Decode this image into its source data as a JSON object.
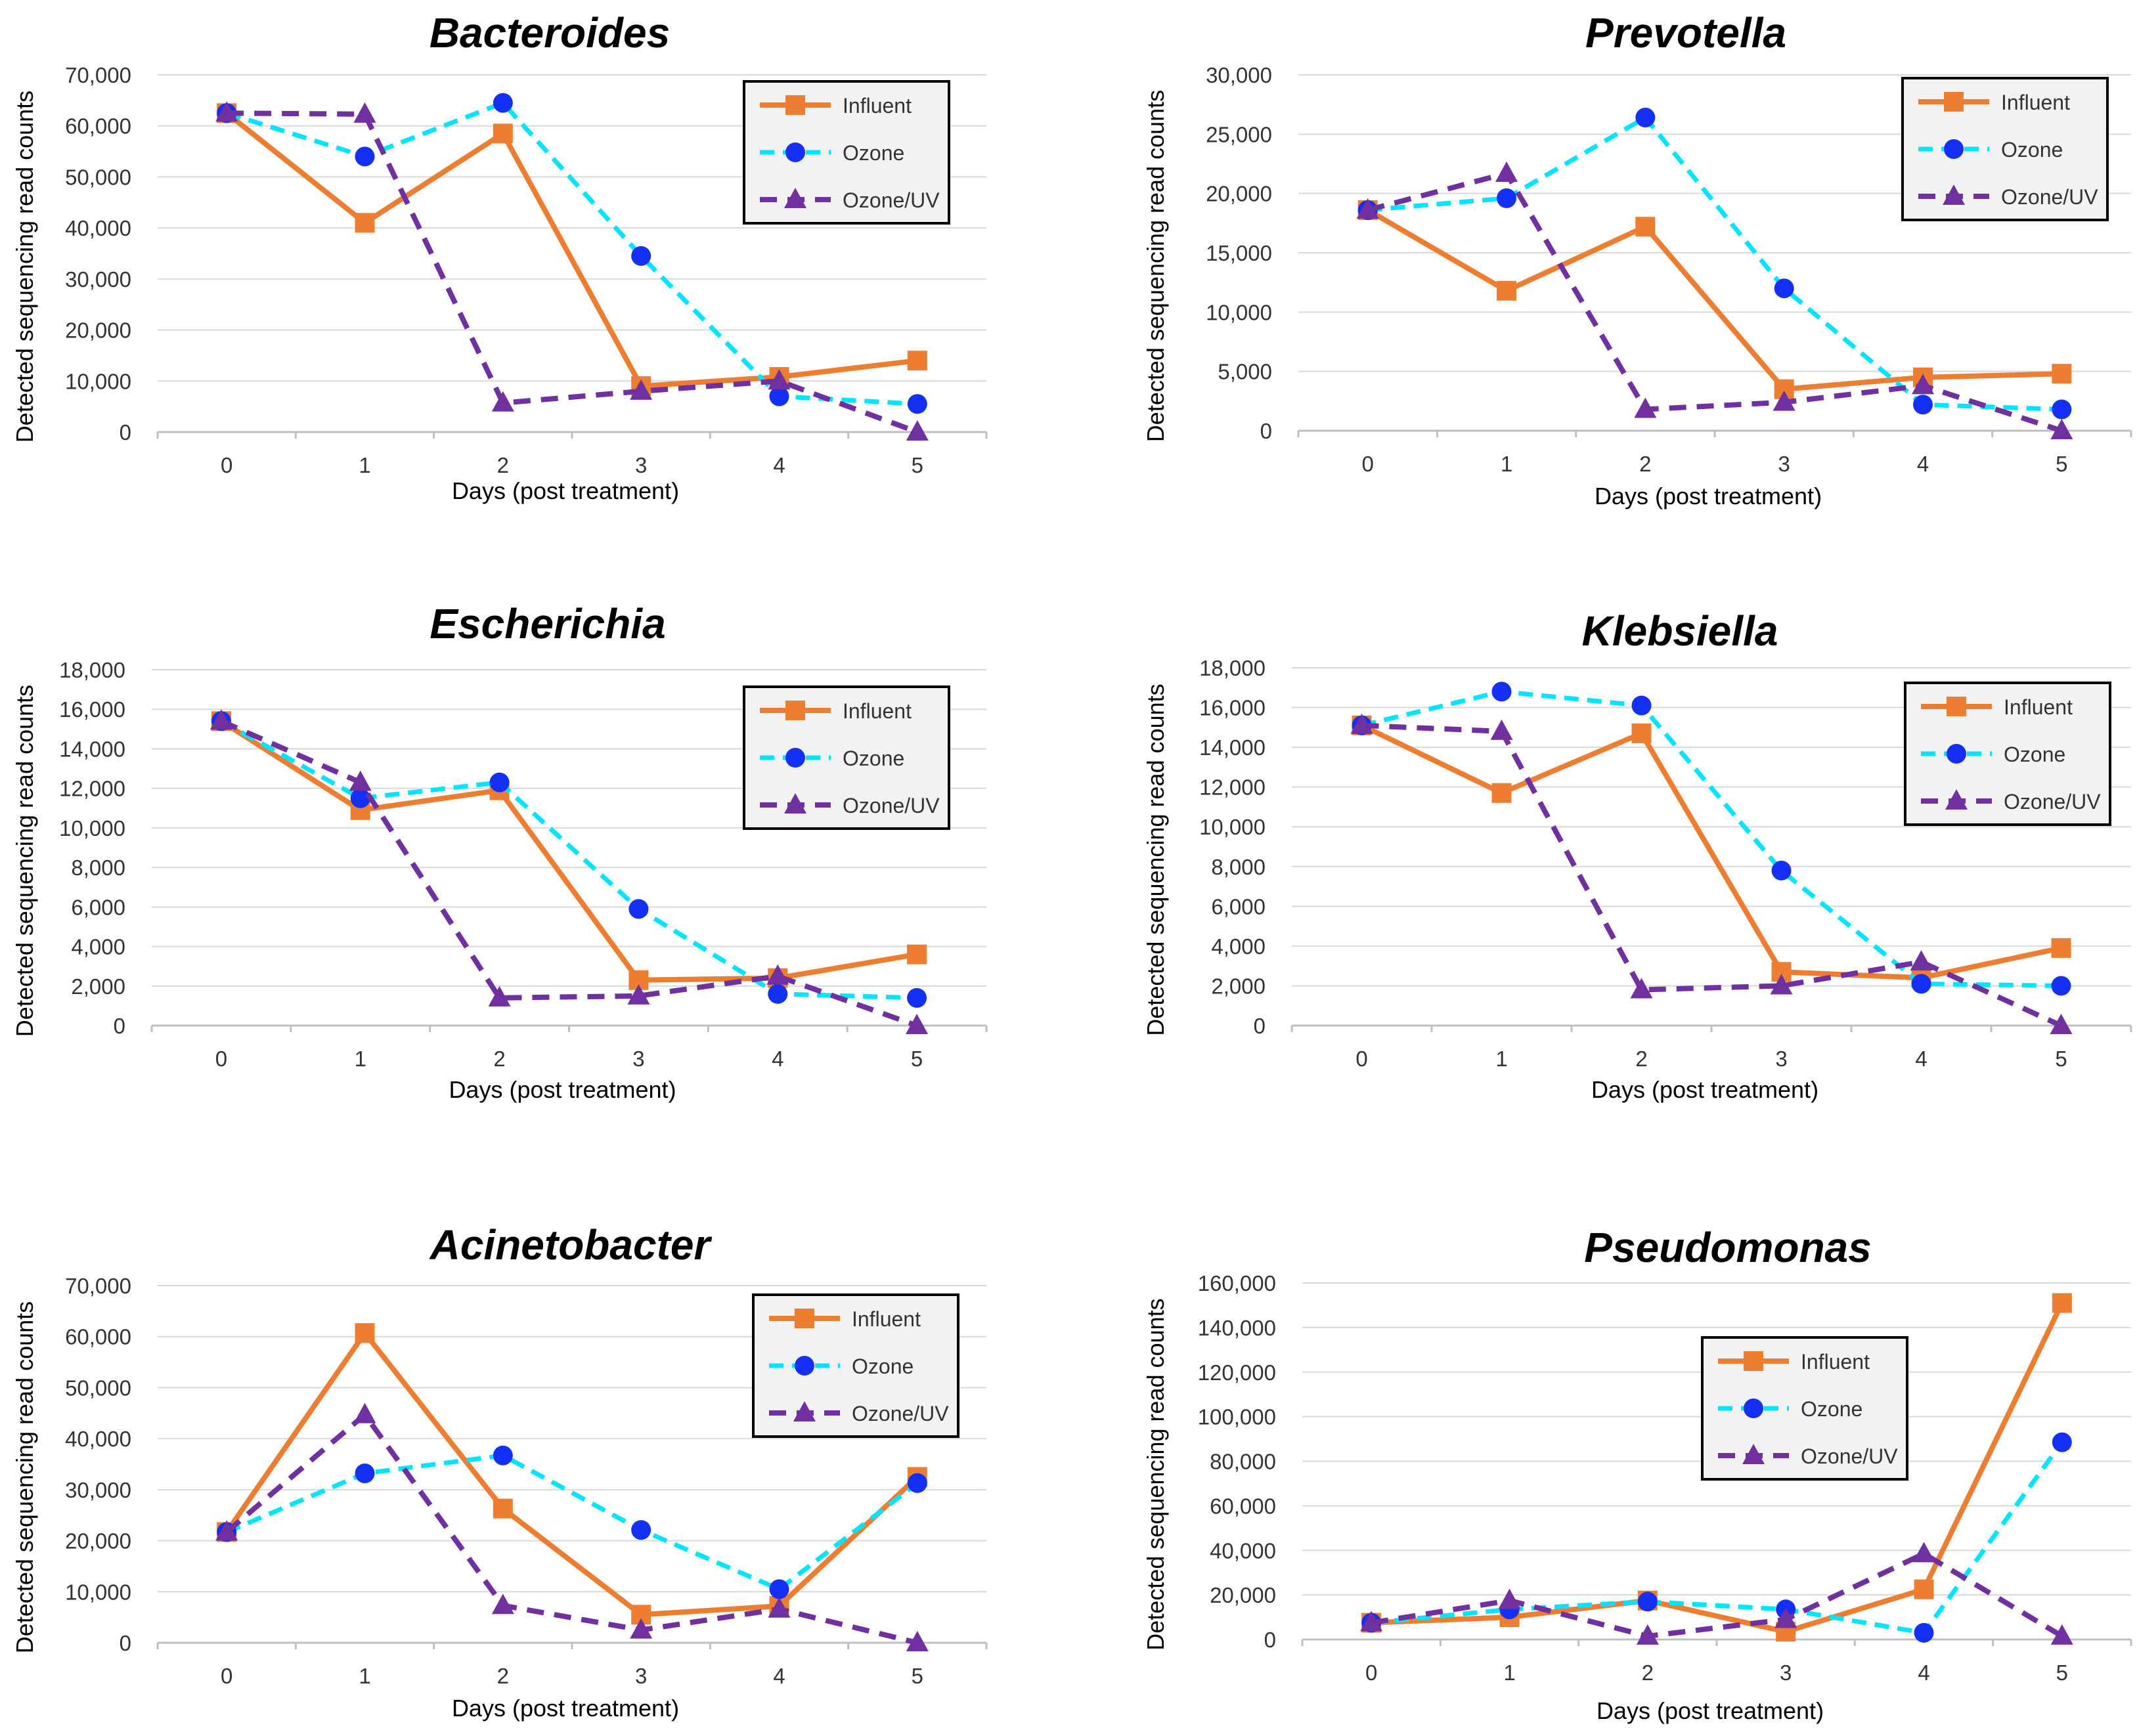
{
  "colors": {
    "Influent": "#ED7D31",
    "Ozone": "#00E5FF",
    "Ozone_marker": "#1530F5",
    "Ozone/UV": "#7030A0",
    "grid": "#D9D9D9",
    "legend_bg": "#F2F2F2"
  },
  "chart_data": [
    {
      "type": "line",
      "title": "Bacteroides",
      "xlabel": "Days (post treatment)",
      "ylabel": "Detected sequencing read counts",
      "x": [
        0,
        1,
        2,
        3,
        4,
        5
      ],
      "x_labels": [
        "0",
        "1",
        "2",
        "3",
        "4",
        "5"
      ],
      "ylim": [
        0,
        70000
      ],
      "y_ticks": [
        0,
        10000,
        20000,
        30000,
        40000,
        50000,
        60000,
        70000
      ],
      "y_tick_labels": [
        "0",
        "10,000",
        "20,000",
        "30,000",
        "40,000",
        "50,000",
        "60,000",
        "70,000"
      ],
      "legend_position": "top-right",
      "series": [
        {
          "name": "Influent",
          "values": [
            62500,
            41000,
            58500,
            9000,
            10800,
            14000
          ]
        },
        {
          "name": "Ozone",
          "values": [
            62500,
            54000,
            64500,
            34500,
            7000,
            5500
          ]
        },
        {
          "name": "Ozone/UV",
          "values": [
            62500,
            62300,
            5700,
            8000,
            10000,
            0
          ]
        }
      ]
    },
    {
      "type": "line",
      "title": "Prevotella",
      "xlabel": "Days (post treatment)",
      "ylabel": "Detected sequencing read counts",
      "x": [
        0,
        1,
        2,
        3,
        4,
        5
      ],
      "x_labels": [
        "0",
        "1",
        "2",
        "3",
        "4",
        "5"
      ],
      "ylim": [
        0,
        30000
      ],
      "y_ticks": [
        0,
        5000,
        10000,
        15000,
        20000,
        25000,
        30000
      ],
      "y_tick_labels": [
        "0",
        "5,000",
        "10,000",
        "15,000",
        "20,000",
        "25,000",
        "30,000"
      ],
      "legend_position": "top-right",
      "series": [
        {
          "name": "Influent",
          "values": [
            18600,
            11800,
            17200,
            3500,
            4500,
            4800
          ]
        },
        {
          "name": "Ozone",
          "values": [
            18600,
            19600,
            26400,
            12000,
            2200,
            1800
          ]
        },
        {
          "name": "Ozone/UV",
          "values": [
            18600,
            21700,
            1800,
            2400,
            3800,
            0
          ]
        }
      ]
    },
    {
      "type": "line",
      "title": "Escherichia",
      "xlabel": "Days (post treatment)",
      "ylabel": "Detected sequencing read counts",
      "x": [
        0,
        1,
        2,
        3,
        4,
        5
      ],
      "x_labels": [
        "0",
        "1",
        "2",
        "3",
        "4",
        "5"
      ],
      "ylim": [
        0,
        18000
      ],
      "y_ticks": [
        0,
        2000,
        4000,
        6000,
        8000,
        10000,
        12000,
        14000,
        16000,
        18000
      ],
      "y_tick_labels": [
        "0",
        "2,000",
        "4,000",
        "6,000",
        "8,000",
        "10,000",
        "12,000",
        "14,000",
        "16,000",
        "18,000"
      ],
      "legend_position": "top-right",
      "series": [
        {
          "name": "Influent",
          "values": [
            15400,
            10900,
            11900,
            2300,
            2400,
            3600
          ]
        },
        {
          "name": "Ozone",
          "values": [
            15400,
            11500,
            12300,
            5900,
            1600,
            1400
          ]
        },
        {
          "name": "Ozone/UV",
          "values": [
            15400,
            12300,
            1400,
            1500,
            2500,
            0
          ]
        }
      ]
    },
    {
      "type": "line",
      "title": "Klebsiella",
      "xlabel": "Days (post treatment)",
      "ylabel": "Detected sequencing read counts",
      "x": [
        0,
        1,
        2,
        3,
        4,
        5
      ],
      "x_labels": [
        "0",
        "1",
        "2",
        "3",
        "4",
        "5"
      ],
      "ylim": [
        0,
        18000
      ],
      "y_ticks": [
        0,
        2000,
        4000,
        6000,
        8000,
        10000,
        12000,
        14000,
        16000,
        18000
      ],
      "y_tick_labels": [
        "0",
        "2,000",
        "4,000",
        "6,000",
        "8,000",
        "10,000",
        "12,000",
        "14,000",
        "16,000",
        "18,000"
      ],
      "legend_position": "top-right",
      "series": [
        {
          "name": "Influent",
          "values": [
            15100,
            11700,
            14700,
            2700,
            2400,
            3900
          ]
        },
        {
          "name": "Ozone",
          "values": [
            15100,
            16800,
            16100,
            7800,
            2100,
            2000
          ]
        },
        {
          "name": "Ozone/UV",
          "values": [
            15100,
            14800,
            1800,
            2000,
            3200,
            0
          ]
        }
      ]
    },
    {
      "type": "line",
      "title": "Acinetobacter",
      "xlabel": "Days (post treatment)",
      "ylabel": "Detected sequencing read counts",
      "x": [
        0,
        1,
        2,
        3,
        4,
        5
      ],
      "x_labels": [
        "0",
        "1",
        "2",
        "3",
        "4",
        "5"
      ],
      "ylim": [
        0,
        70000
      ],
      "y_ticks": [
        0,
        10000,
        20000,
        30000,
        40000,
        50000,
        60000,
        70000
      ],
      "y_tick_labels": [
        "0",
        "10,000",
        "20,000",
        "30,000",
        "40,000",
        "50,000",
        "60,000",
        "70,000"
      ],
      "legend_position": "top-right",
      "series": [
        {
          "name": "Influent",
          "values": [
            21700,
            60700,
            26300,
            5500,
            7200,
            32500
          ]
        },
        {
          "name": "Ozone",
          "values": [
            21700,
            33200,
            36700,
            22100,
            10500,
            31300
          ]
        },
        {
          "name": "Ozone/UV",
          "values": [
            21700,
            44700,
            7300,
            2500,
            6600,
            0
          ]
        }
      ]
    },
    {
      "type": "line",
      "title": "Pseudomonas",
      "xlabel": "Days (post treatment)",
      "ylabel": "Detected sequencing read counts",
      "x": [
        0,
        1,
        2,
        3,
        4,
        5
      ],
      "x_labels": [
        "0",
        "1",
        "2",
        "3",
        "4",
        "5"
      ],
      "ylim": [
        0,
        160000
      ],
      "y_ticks": [
        0,
        20000,
        40000,
        60000,
        80000,
        100000,
        120000,
        140000,
        160000
      ],
      "y_tick_labels": [
        "0",
        "20,000",
        "40,000",
        "60,000",
        "80,000",
        "100,000",
        "120,000",
        "140,000",
        "160,000"
      ],
      "legend_position": "top-center",
      "series": [
        {
          "name": "Influent",
          "values": [
            7500,
            10000,
            17500,
            3500,
            22500,
            151000
          ]
        },
        {
          "name": "Ozone",
          "values": [
            7500,
            13500,
            17000,
            13500,
            3000,
            88500
          ]
        },
        {
          "name": "Ozone/UV",
          "values": [
            7500,
            17500,
            1500,
            9000,
            38500,
            1500
          ]
        }
      ]
    }
  ]
}
